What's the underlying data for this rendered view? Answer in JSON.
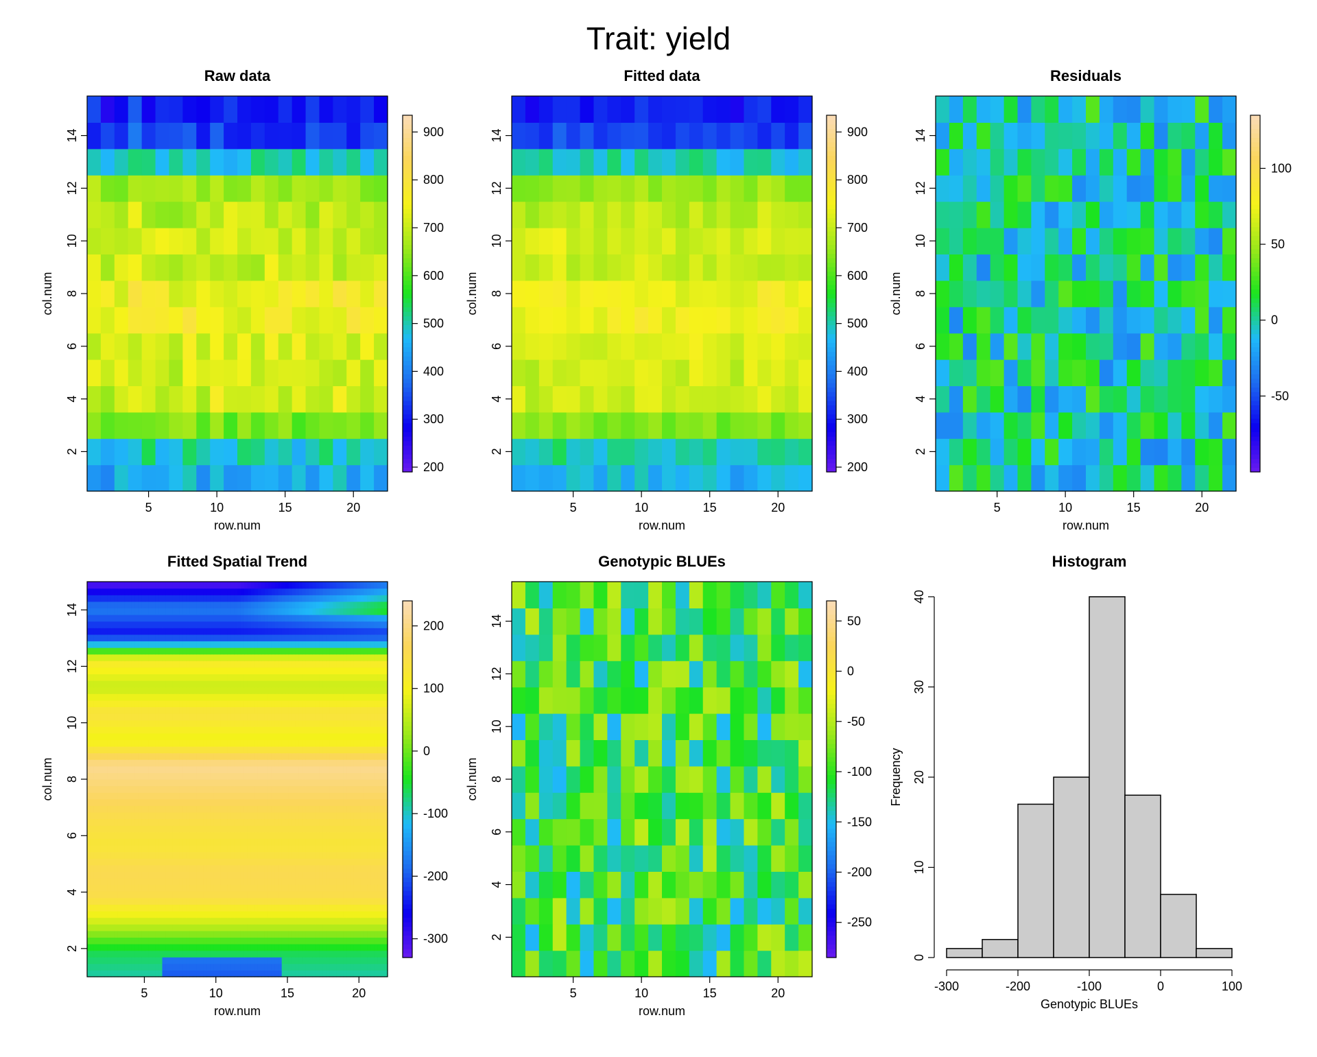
{
  "title": "Trait: yield",
  "colors": {
    "scale": [
      "#6a1bf0",
      "#0a00f0",
      "#1d6bf0",
      "#1fbaf8",
      "#1be41f",
      "#9ae81a",
      "#f6f21a",
      "#fbd65a",
      "#fbdcb8"
    ],
    "hist_fill": "#cccccc"
  },
  "chart_data": [
    {
      "type": "heatmap",
      "id": "raw",
      "title": "Raw data",
      "xlabel": "row.num",
      "ylabel": "col.num",
      "grid": [
        22,
        15
      ],
      "xlim": [
        0.5,
        22.5
      ],
      "ylim": [
        0.5,
        15.5
      ],
      "xticks": [
        5,
        10,
        15,
        20
      ],
      "yticks": [
        2,
        4,
        6,
        8,
        10,
        12,
        14
      ],
      "zlim": [
        190,
        935
      ],
      "cticks": [
        200,
        300,
        400,
        500,
        600,
        700,
        800,
        900
      ],
      "profile": [
        470,
        430,
        560,
        690,
        720,
        700,
        740,
        760,
        740,
        660,
        760,
        620,
        680,
        300,
        380,
        240
      ],
      "rowShift": [
        0,
        -10,
        0,
        10,
        5,
        0,
        -5,
        10,
        0,
        15,
        5,
        0,
        -5,
        10,
        5,
        0,
        -10,
        5,
        10,
        5,
        -5,
        0
      ],
      "noise": 45
    },
    {
      "type": "heatmap",
      "id": "fitted",
      "title": "Fitted data",
      "xlabel": "row.num",
      "ylabel": "col.num",
      "grid": [
        22,
        15
      ],
      "xlim": [
        0.5,
        22.5
      ],
      "ylim": [
        0.5,
        15.5
      ],
      "xticks": [
        5,
        10,
        15,
        20
      ],
      "yticks": [
        2,
        4,
        6,
        8,
        10,
        12,
        14
      ],
      "zlim": [
        190,
        935
      ],
      "cticks": [
        200,
        300,
        400,
        500,
        600,
        700,
        800,
        900
      ],
      "profile": [
        480,
        440,
        570,
        700,
        720,
        700,
        735,
        755,
        735,
        660,
        760,
        620,
        680,
        310,
        360,
        250
      ],
      "rowShift": [
        0,
        -10,
        0,
        10,
        5,
        0,
        -5,
        10,
        0,
        15,
        5,
        0,
        -5,
        10,
        5,
        0,
        -10,
        5,
        10,
        5,
        -5,
        0
      ],
      "noise": 30
    },
    {
      "type": "heatmap",
      "id": "residuals",
      "title": "Residuals",
      "xlabel": "row.num",
      "ylabel": "col.num",
      "grid": [
        22,
        15
      ],
      "xlim": [
        0.5,
        22.5
      ],
      "ylim": [
        0.5,
        15.5
      ],
      "xticks": [
        5,
        10,
        15,
        20
      ],
      "yticks": [
        2,
        4,
        6,
        8,
        10,
        12,
        14
      ],
      "zlim": [
        -100,
        135
      ],
      "cticks": [
        -50,
        0,
        50,
        100
      ],
      "profile": [
        0,
        0,
        0,
        0,
        0,
        0,
        0,
        0,
        0,
        0,
        0,
        0,
        0,
        0,
        0,
        0
      ],
      "noise": 32
    },
    {
      "type": "heatmap",
      "id": "trend",
      "title": "Fitted Spatial Trend",
      "xlabel": "row.num",
      "ylabel": "col.num",
      "grid": [
        88,
        60
      ],
      "xlim": [
        1,
        22
      ],
      "ylim": [
        1,
        15
      ],
      "xticks": [
        5,
        10,
        15,
        20
      ],
      "yticks": [
        2,
        4,
        6,
        8,
        10,
        12,
        14
      ],
      "zlim": [
        -330,
        240
      ],
      "cticks": [
        -300,
        -200,
        -100,
        0,
        100,
        200
      ],
      "profile": [
        -90,
        -60,
        60,
        150,
        160,
        130,
        150,
        180,
        210,
        90,
        140,
        60,
        120,
        -250,
        -170,
        -320
      ],
      "noise": 0
    },
    {
      "type": "heatmap",
      "id": "blues",
      "title": "Genotypic BLUEs",
      "xlabel": "row.num",
      "ylabel": "col.num",
      "grid": [
        22,
        15
      ],
      "xlim": [
        0.5,
        22.5
      ],
      "ylim": [
        0.5,
        15.5
      ],
      "xticks": [
        5,
        10,
        15,
        20
      ],
      "yticks": [
        2,
        4,
        6,
        8,
        10,
        12,
        14
      ],
      "zlim": [
        -285,
        70
      ],
      "cticks": [
        -250,
        -200,
        -150,
        -100,
        -50,
        0,
        50
      ],
      "profile": [
        -100,
        -100,
        -100,
        -100,
        -100,
        -100,
        -100,
        -100,
        -100,
        -100,
        -100,
        -100,
        -100,
        -100,
        -100,
        -100
      ],
      "noise": 55
    },
    {
      "type": "bar",
      "id": "hist",
      "title": "Histogram",
      "xlabel": "Genotypic BLUEs",
      "ylabel": "Frequency",
      "bins": [
        -300,
        -250,
        -200,
        -150,
        -100,
        -50,
        0,
        50,
        100
      ],
      "counts": [
        1,
        2,
        17,
        20,
        40,
        18,
        7,
        1
      ],
      "xlim": [
        -300,
        100
      ],
      "xticks": [
        -300,
        -200,
        -100,
        0,
        100
      ],
      "ylim": [
        0,
        40
      ],
      "yticks": [
        0,
        10,
        20,
        30,
        40
      ]
    }
  ]
}
